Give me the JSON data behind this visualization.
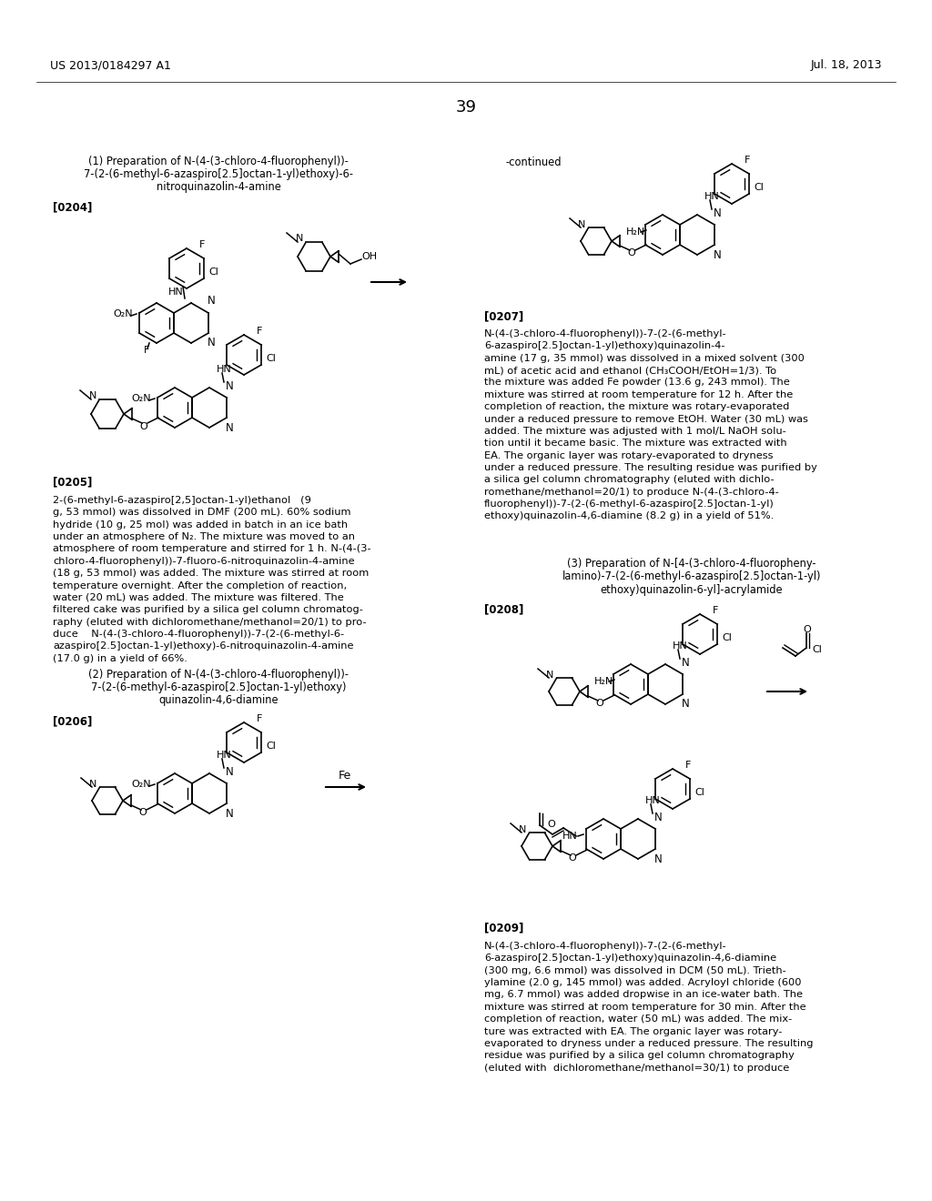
{
  "header_left": "US 2013/0184297 A1",
  "header_right": "Jul. 18, 2013",
  "page_number": "39",
  "background_color": "#ffffff"
}
